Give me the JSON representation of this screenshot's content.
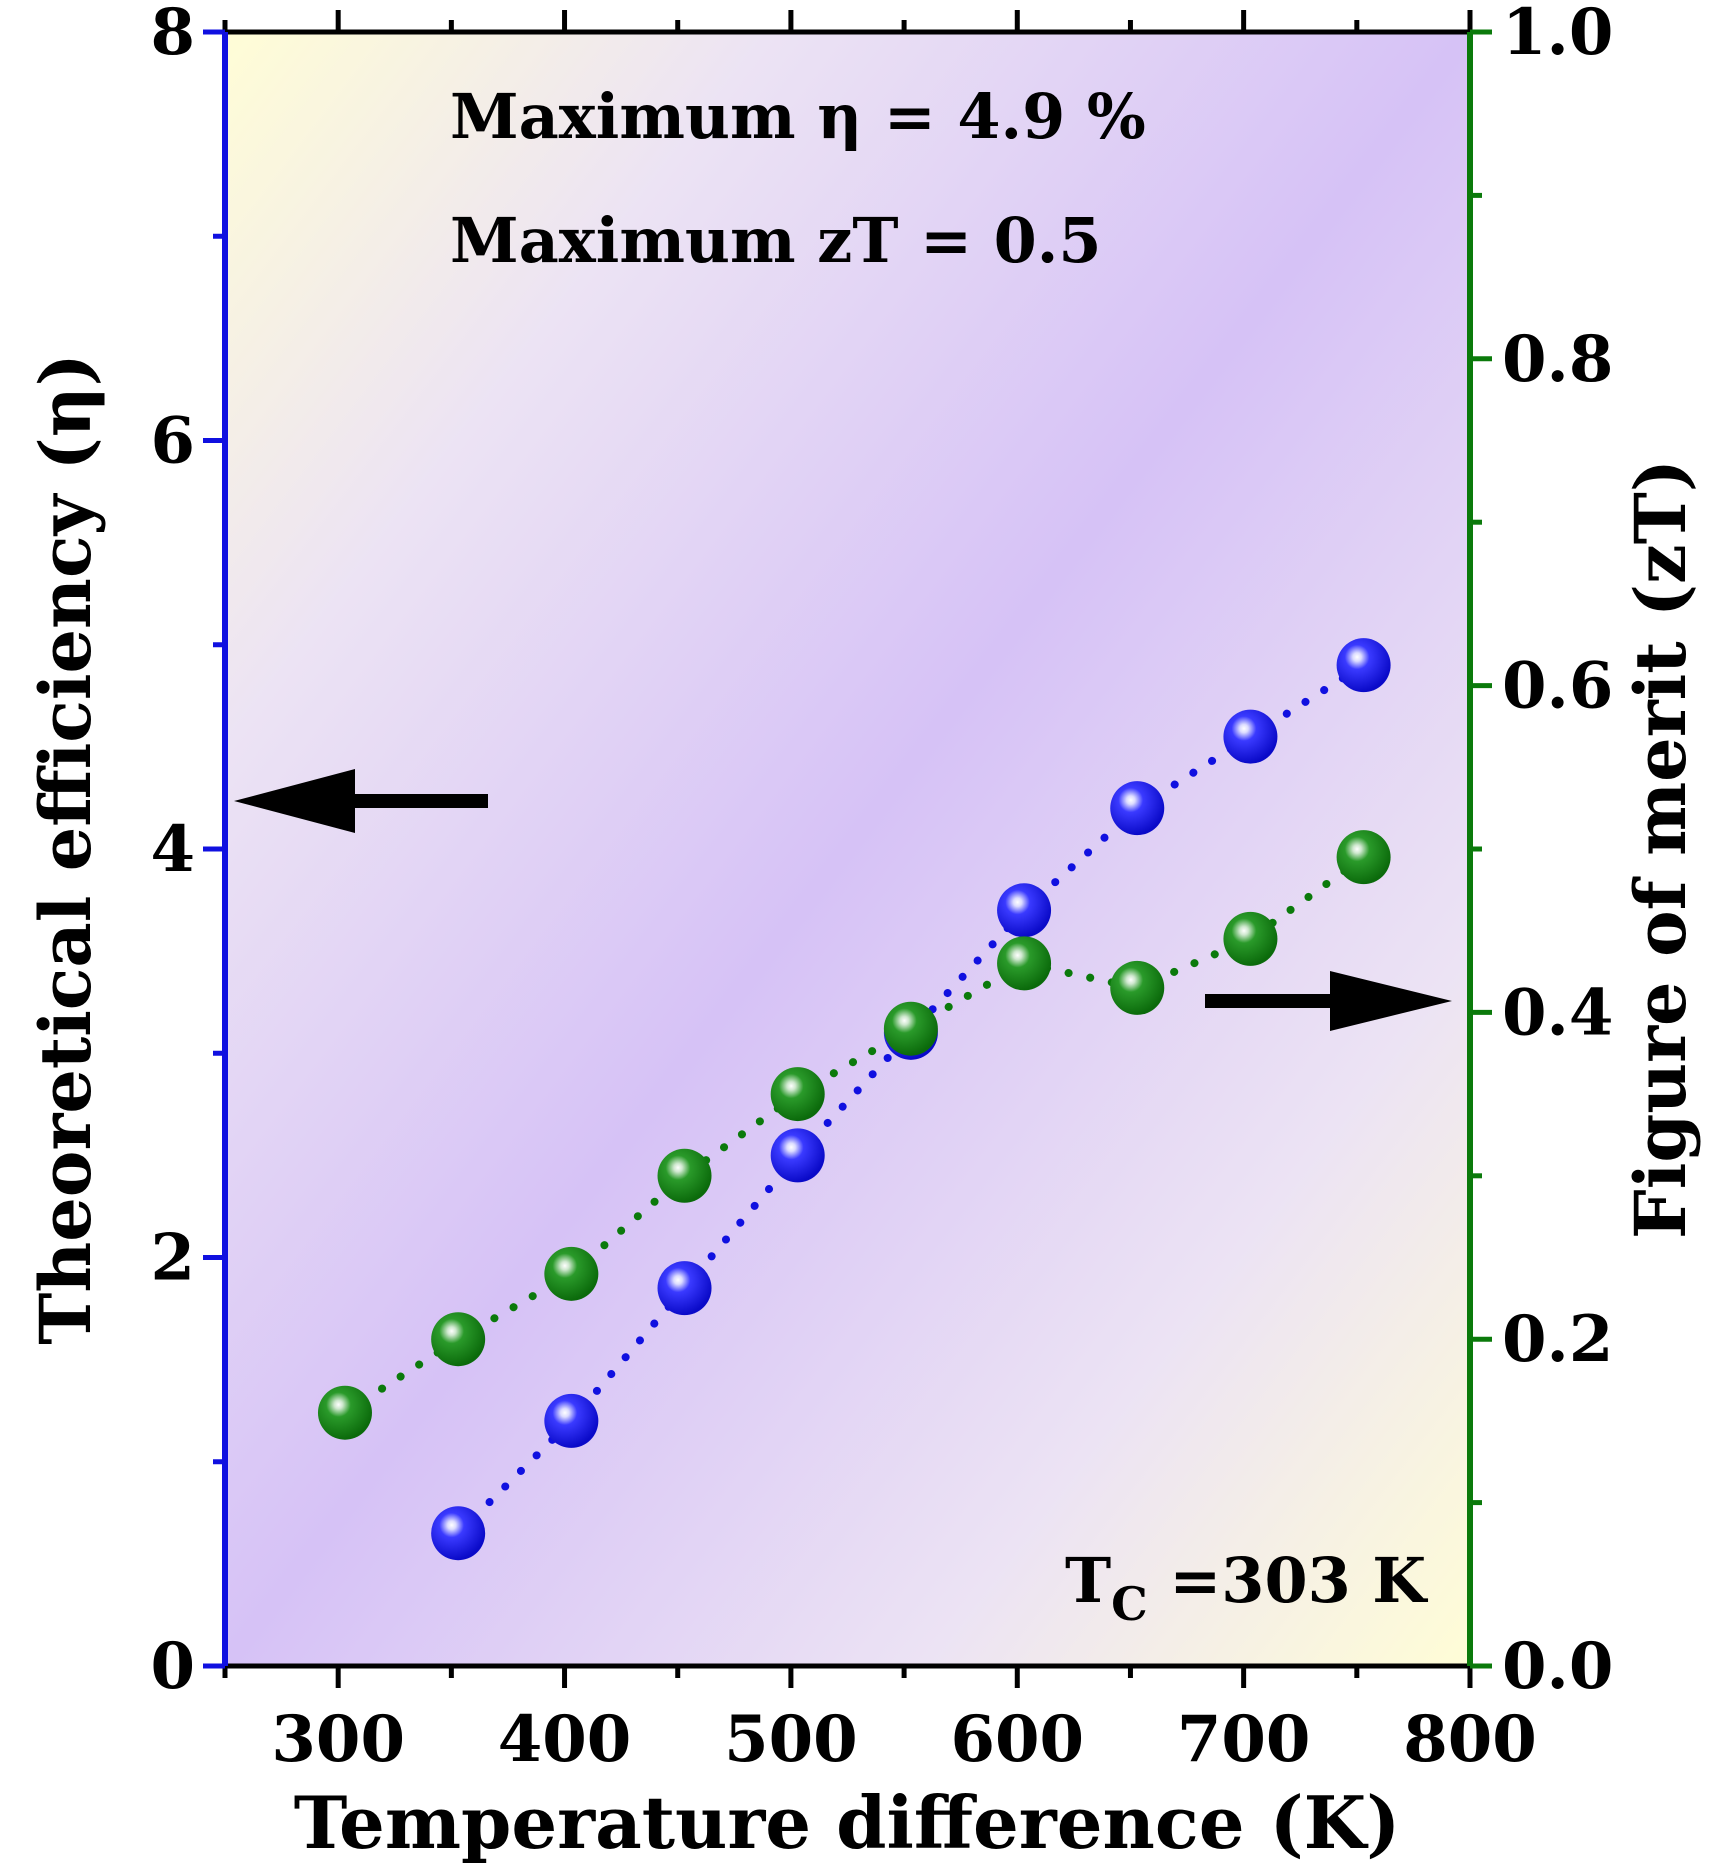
{
  "chart_data": {
    "type": "scatter",
    "x_axis": {
      "label": "Temperature difference (K)",
      "range": [
        250,
        800
      ],
      "ticks": [
        300,
        400,
        500,
        600,
        700,
        800
      ]
    },
    "y_axis_left": {
      "label": "Theoretical efficiency (η)",
      "range": [
        0,
        8
      ],
      "ticks": [
        0,
        2,
        4,
        6,
        8
      ],
      "color": "#1010e0"
    },
    "y_axis_right": {
      "label": "Figure of merit (zT)",
      "range": [
        0,
        1
      ],
      "ticks": [
        "0.0",
        "0.2",
        "0.4",
        "0.6",
        "0.8",
        "1.0"
      ],
      "color": "#0b7a0b"
    },
    "series": [
      {
        "axis": "left",
        "color": "#1010e0",
        "points": [
          [
            353,
            0.65
          ],
          [
            403,
            1.2
          ],
          [
            453,
            1.85
          ],
          [
            503,
            2.5
          ],
          [
            553,
            3.1
          ],
          [
            603,
            3.7
          ],
          [
            653,
            4.2
          ],
          [
            703,
            4.55
          ],
          [
            753,
            4.9
          ]
        ]
      },
      {
        "axis": "right",
        "color": "#0b7a0b",
        "points": [
          [
            303,
            0.155
          ],
          [
            353,
            0.2
          ],
          [
            403,
            0.24
          ],
          [
            453,
            0.3
          ],
          [
            503,
            0.35
          ],
          [
            553,
            0.39
          ],
          [
            603,
            0.43
          ],
          [
            653,
            0.415
          ],
          [
            703,
            0.445
          ],
          [
            753,
            0.495
          ]
        ]
      }
    ],
    "annotations": {
      "max_eta": "Maximum η = 4.9 %",
      "max_zt": "Maximum zT = 0.5",
      "tc_prefix": "T",
      "tc_subscript": "C",
      "tc_value": " =303 K"
    },
    "grid": false,
    "background": "gradient"
  }
}
